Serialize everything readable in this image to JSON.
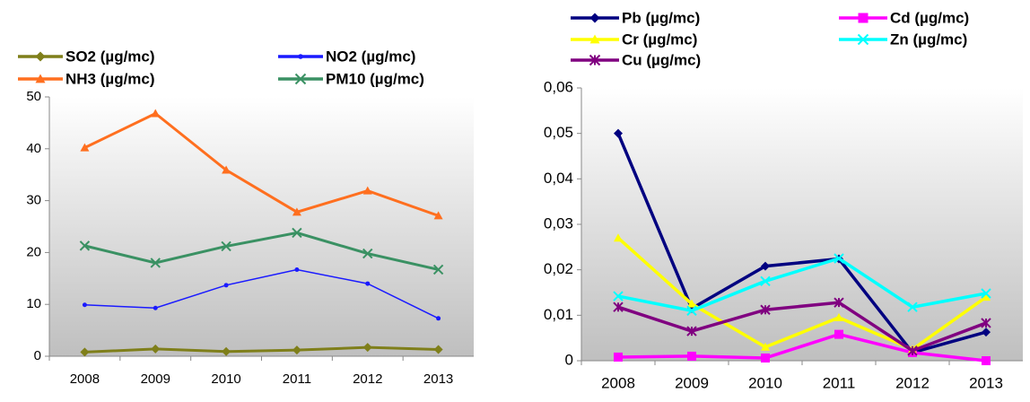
{
  "chart_data": [
    {
      "type": "line",
      "categories": [
        "2008",
        "2009",
        "2010",
        "2011",
        "2012",
        "2013"
      ],
      "ylim": [
        0,
        50
      ],
      "yticks": [
        0,
        10,
        20,
        30,
        40,
        50
      ],
      "series": [
        {
          "name": "SO2 (µg/mc)",
          "color": "#7f7f1a",
          "marker": "diamond",
          "values": [
            0.8,
            1.4,
            0.9,
            1.2,
            1.7,
            1.3
          ]
        },
        {
          "name": "NO2 (µg/mc)",
          "color": "#1a1aff",
          "marker": "dot",
          "values": [
            9.9,
            9.3,
            13.7,
            16.7,
            14.0,
            7.3
          ]
        },
        {
          "name": "NH3 (µg/mc)",
          "color": "#ff6f1f",
          "marker": "triangle",
          "values": [
            40.2,
            46.8,
            35.9,
            27.8,
            31.9,
            27.1
          ]
        },
        {
          "name": "PM10 (µg/mc)",
          "color": "#3a9163",
          "marker": "x",
          "values": [
            21.3,
            18.0,
            21.2,
            23.8,
            19.8,
            16.7
          ]
        }
      ]
    },
    {
      "type": "line",
      "categories": [
        "2008",
        "2009",
        "2010",
        "2011",
        "2012",
        "2013"
      ],
      "ylim": [
        0,
        0.06
      ],
      "yticks": [
        0,
        {
          "value": 0.01,
          "label": "0,01"
        },
        {
          "value": 0.02,
          "label": "0,02"
        },
        {
          "value": 0.03,
          "label": "0,03"
        },
        {
          "value": 0.04,
          "label": "0,04"
        },
        {
          "value": 0.05,
          "label": "0,05"
        },
        {
          "value": 0.06,
          "label": "0,06"
        }
      ],
      "series": [
        {
          "name": "Pb (µg/mc)",
          "color": "#000080",
          "marker": "diamond",
          "values": [
            0.05,
            0.0115,
            0.0208,
            0.0224,
            0.0018,
            0.0063
          ]
        },
        {
          "name": "Cd (µg/mc)",
          "color": "#ff00ff",
          "marker": "square",
          "values": [
            0.0008,
            0.001,
            0.0006,
            0.0058,
            0.0018,
            0.0
          ]
        },
        {
          "name": "Cr (µg/mc)",
          "color": "#ffff00",
          "marker": "triangle",
          "values": [
            0.027,
            0.0125,
            0.003,
            0.0095,
            0.0025,
            0.014
          ]
        },
        {
          "name": "Zn (µg/mc)",
          "color": "#00ffff",
          "marker": "x",
          "values": [
            0.0142,
            0.011,
            0.0175,
            0.0225,
            0.0118,
            0.0148
          ]
        },
        {
          "name": "Cu (µg/mc)",
          "color": "#800080",
          "marker": "star",
          "values": [
            0.0118,
            0.0065,
            0.0112,
            0.0128,
            0.0022,
            0.0083
          ]
        }
      ]
    }
  ]
}
